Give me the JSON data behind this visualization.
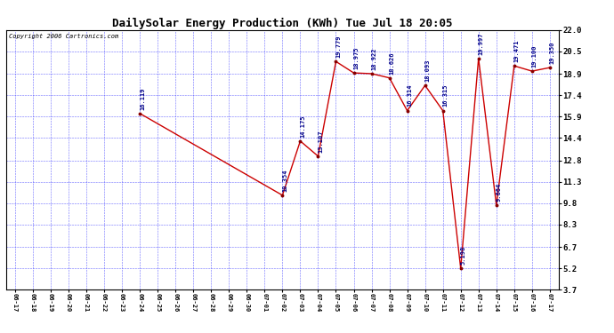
{
  "title": "DailySolar Energy Production (KWh) Tue Jul 18 20:05",
  "copyright": "Copyright 2006 Cartronics.com",
  "x_labels": [
    "06-17",
    "06-18",
    "06-19",
    "06-20",
    "06-21",
    "06-22",
    "06-23",
    "06-24",
    "06-25",
    "06-26",
    "06-27",
    "06-28",
    "06-29",
    "06-30",
    "07-01",
    "07-02",
    "07-03",
    "07-04",
    "07-05",
    "07-06",
    "07-07",
    "07-08",
    "07-09",
    "07-10",
    "07-11",
    "07-12",
    "07-13",
    "07-14",
    "07-15",
    "07-16",
    "07-17"
  ],
  "y_values": [
    null,
    null,
    null,
    null,
    null,
    null,
    null,
    16.119,
    null,
    null,
    null,
    null,
    null,
    null,
    null,
    10.354,
    14.175,
    13.107,
    19.779,
    18.975,
    18.922,
    18.626,
    16.314,
    18.093,
    16.315,
    5.198,
    19.997,
    9.664,
    19.471,
    19.1,
    19.35
  ],
  "point_labels": {
    "7": "16.119",
    "15": "10.354",
    "16": "14.175",
    "17": "13.107",
    "18": "19.779",
    "19": "18.975",
    "20": "18.922",
    "21": "18.626",
    "22": "16.314",
    "23": "18.093",
    "24": "16.315",
    "25": "5.198",
    "26": "19.997",
    "27": "9.664",
    "28": "19.471",
    "29": "19.100",
    "30": "19.350"
  },
  "yticks": [
    3.7,
    5.2,
    6.7,
    8.3,
    9.8,
    11.3,
    12.8,
    14.4,
    15.9,
    17.4,
    18.9,
    20.5,
    22.0
  ],
  "ylim": [
    3.7,
    22.0
  ],
  "line_color": "#cc0000",
  "marker_color": "#880000",
  "bg_color": "#ffffff",
  "grid_color": "#4444ff",
  "label_color": "#000088",
  "title_color": "#000000",
  "figwidth": 6.9,
  "figheight": 3.75,
  "dpi": 100
}
